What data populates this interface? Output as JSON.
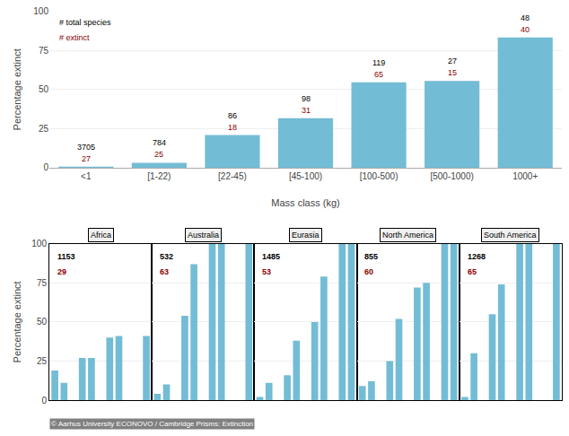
{
  "chart_data": [
    {
      "type": "bar",
      "categories": [
        "<1",
        "[1-22)",
        "[22-45)",
        "[45-100)",
        "[100-500)",
        "[500-1000)",
        "1000+"
      ],
      "values": [
        0.73,
        3.19,
        20.93,
        31.63,
        54.62,
        55.56,
        83.33
      ],
      "totals": [
        3705,
        784,
        86,
        98,
        119,
        27,
        48
      ],
      "extinct": [
        27,
        25,
        18,
        31,
        65,
        15,
        40
      ],
      "color": "#73bcd5",
      "xlabel": "Mass class (kg)",
      "ylabel": "Percentage extinct",
      "ylim": [
        0,
        100
      ],
      "yticks": [
        0,
        25,
        50,
        75,
        100
      ],
      "grid": true,
      "annotations": [
        "# total species",
        "# extinct"
      ]
    },
    {
      "type": "bar",
      "title": "Africa",
      "categories": [
        null,
        null,
        null,
        null,
        null,
        null,
        null,
        null,
        null,
        null,
        null
      ],
      "values": [
        19,
        11,
        0,
        27,
        27,
        0,
        40,
        41,
        0,
        0,
        41
      ],
      "total": 1153,
      "extinct": 29,
      "color": "#73bcd5",
      "ylabel": "Percentage extinct",
      "ylim": [
        0,
        100
      ],
      "yticks": [
        0,
        25,
        50,
        75,
        100
      ],
      "grid": true,
      "tick_labels": "y"
    },
    {
      "type": "bar",
      "title": "Australia",
      "categories": [
        null,
        null,
        null,
        null,
        null,
        null,
        null,
        null,
        null,
        null,
        null
      ],
      "values": [
        4,
        10,
        0,
        54,
        87,
        0,
        100,
        100,
        0,
        0,
        100
      ],
      "total": 532,
      "extinct": 63,
      "color": "#73bcd5",
      "ylim": [
        0,
        100
      ],
      "yticks": [
        0,
        25,
        50,
        75,
        100
      ],
      "grid": true,
      "tick_labels": false
    },
    {
      "type": "bar",
      "title": "Eurasia",
      "categories": [
        null,
        null,
        null,
        null,
        null,
        null,
        null,
        null,
        null,
        null,
        null
      ],
      "values": [
        2,
        11,
        0,
        16,
        38,
        0,
        50,
        79,
        0,
        100,
        100
      ],
      "total": 1485,
      "extinct": 53,
      "color": "#73bcd5",
      "ylim": [
        0,
        100
      ],
      "yticks": [
        0,
        25,
        50,
        75,
        100
      ],
      "grid": true,
      "tick_labels": false
    },
    {
      "type": "bar",
      "title": "North America",
      "categories": [
        null,
        null,
        null,
        null,
        null,
        null,
        null,
        null,
        null,
        null,
        null
      ],
      "values": [
        9,
        12,
        0,
        25,
        52,
        0,
        72,
        75,
        0,
        100,
        100
      ],
      "total": 855,
      "extinct": 60,
      "color": "#73bcd5",
      "ylim": [
        0,
        100
      ],
      "yticks": [
        0,
        25,
        50,
        75,
        100
      ],
      "grid": true,
      "tick_labels": false
    },
    {
      "type": "bar",
      "title": "South America",
      "categories": [
        null,
        null,
        null,
        null,
        null,
        null,
        null,
        null,
        null,
        null,
        null
      ],
      "values": [
        2,
        30,
        0,
        55,
        74,
        0,
        100,
        100,
        0,
        0,
        100
      ],
      "total": 1268,
      "extinct": 65,
      "color": "#73bcd5",
      "ylim": [
        0,
        100
      ],
      "yticks": [
        0,
        25,
        50,
        75,
        100
      ],
      "grid": true,
      "tick_labels": false
    }
  ],
  "footer": "© Aarhus University ECONOVO / Cambridge Prisms: Extinction"
}
